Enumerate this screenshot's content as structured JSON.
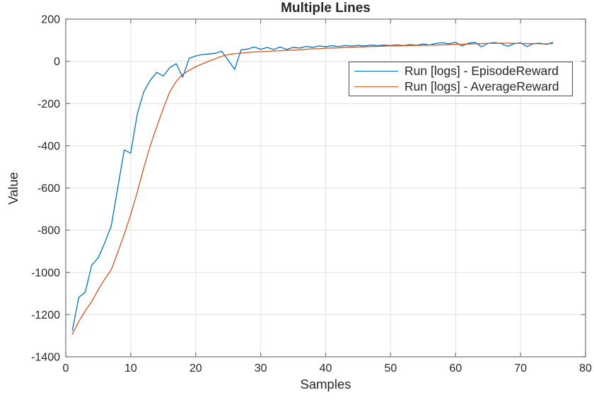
{
  "title": "Multiple Lines",
  "xlabel": "Samples",
  "ylabel": "Value",
  "legend": {
    "position": "upper-right",
    "items": [
      {
        "label": "Run [logs] - EpisodeReward",
        "color": "#0072BD"
      },
      {
        "label": "Run [logs] - AverageReward",
        "color": "#D95319"
      }
    ]
  },
  "axes": {
    "xlim": [
      0,
      80
    ],
    "ylim": [
      -1400,
      200
    ],
    "xticks": [
      0,
      10,
      20,
      30,
      40,
      50,
      60,
      70,
      80
    ],
    "yticks": [
      200,
      0,
      -200,
      -400,
      -600,
      -800,
      -1000,
      -1200,
      -1400
    ],
    "grid": true
  },
  "colors": {
    "background": "#ffffff",
    "grid": "#e1e1e1",
    "axis_box": "#7f7f7f",
    "tick_label": "#262626",
    "legend_border": "#4d4d4d",
    "series1": "#0072BD",
    "series2": "#D95319"
  },
  "chart_data": {
    "type": "line",
    "title": "Multiple Lines",
    "xlabel": "Samples",
    "ylabel": "Value",
    "xlim": [
      0,
      80
    ],
    "ylim": [
      -1400,
      200
    ],
    "grid": true,
    "legend_position": "upper-right",
    "x": [
      1,
      2,
      3,
      4,
      5,
      6,
      7,
      8,
      9,
      10,
      11,
      12,
      13,
      14,
      15,
      16,
      17,
      18,
      19,
      20,
      21,
      22,
      23,
      24,
      25,
      26,
      27,
      28,
      29,
      30,
      31,
      32,
      33,
      34,
      35,
      36,
      37,
      38,
      39,
      40,
      41,
      42,
      43,
      44,
      45,
      46,
      47,
      48,
      49,
      50,
      51,
      52,
      53,
      54,
      55,
      56,
      57,
      58,
      59,
      60,
      61,
      62,
      63,
      64,
      65,
      66,
      67,
      68,
      69,
      70,
      71,
      72,
      73,
      74,
      75
    ],
    "series": [
      {
        "name": "Run [logs] - EpisodeReward",
        "color": "#0072BD",
        "values": [
          -1277,
          -1119,
          -1093,
          -965,
          -931,
          -860,
          -780,
          -600,
          -420,
          -435,
          -250,
          -145,
          -90,
          -52,
          -70,
          -30,
          -11,
          -75,
          15,
          25,
          32,
          35,
          38,
          48,
          5,
          -38,
          55,
          58,
          68,
          57,
          66,
          56,
          68,
          56,
          66,
          63,
          71,
          66,
          73,
          69,
          74,
          70,
          75,
          72,
          76,
          73,
          77,
          74,
          77,
          75,
          78,
          75,
          79,
          76,
          82,
          77,
          85,
          88,
          83,
          90,
          73,
          86,
          90,
          69,
          85,
          89,
          84,
          71,
          83,
          88,
          70,
          84,
          86,
          80,
          90
        ]
      },
      {
        "name": "Run [logs] - AverageReward",
        "color": "#D95319",
        "values": [
          -1294,
          -1233,
          -1182,
          -1138,
          -1082,
          -1032,
          -987,
          -905,
          -820,
          -725,
          -620,
          -505,
          -400,
          -310,
          -225,
          -145,
          -95,
          -62,
          -42,
          -26,
          -12,
          0,
          12,
          24,
          32,
          36,
          39,
          42,
          44,
          46,
          47,
          49,
          50,
          52,
          53,
          55,
          57,
          59,
          60,
          62,
          63,
          64,
          66,
          67,
          68,
          69,
          70,
          71,
          72,
          73,
          73,
          74,
          75,
          75,
          76,
          77,
          77,
          78,
          79,
          80,
          81,
          82,
          83,
          84,
          85,
          85,
          86,
          86,
          85,
          85,
          84,
          84,
          83,
          83,
          84
        ]
      }
    ]
  }
}
